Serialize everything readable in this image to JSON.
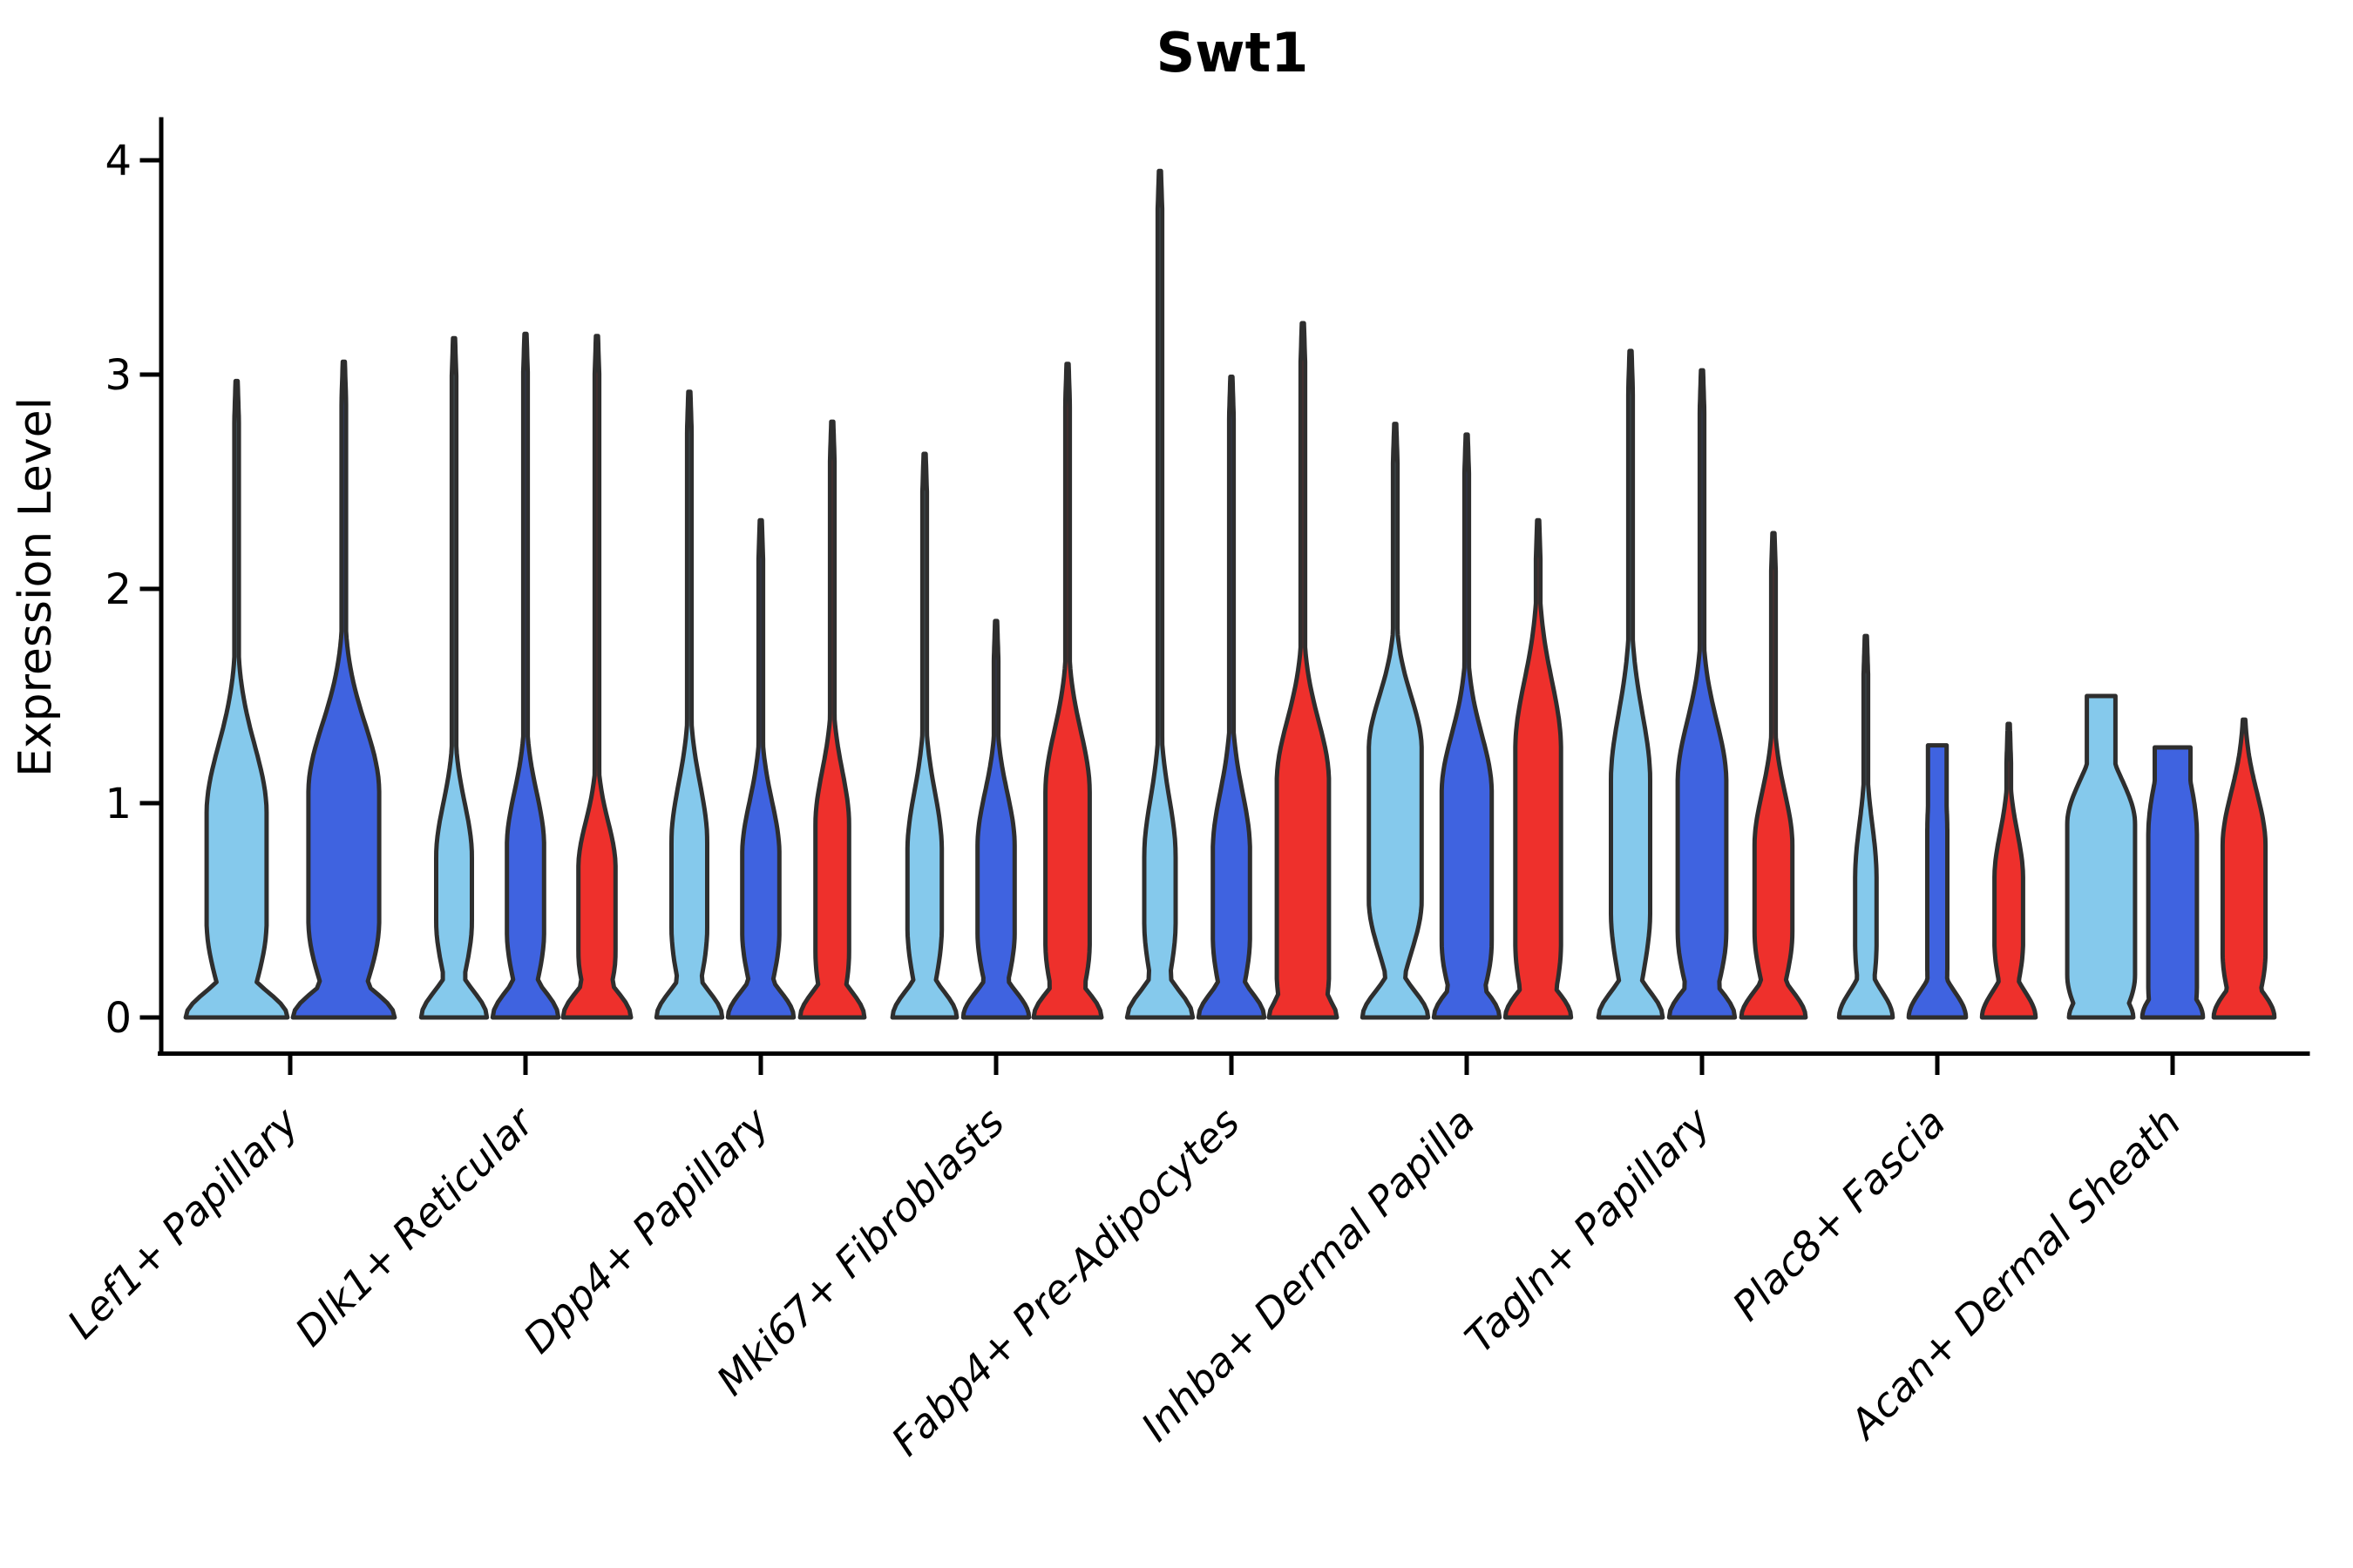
{
  "palette": {
    "series_fills": [
      "#85C9EC",
      "#3F63E0",
      "#EE302C"
    ],
    "series_names": [
      "light-blue-violin",
      "dark-blue-violin",
      "red-violin"
    ],
    "violin_stroke": "#2E2E2E",
    "axis_color": "#000000",
    "background": "#ffffff"
  },
  "chart_data": {
    "type": "violin",
    "title": "Swt1",
    "xlabel": "",
    "ylabel": "Expression Level",
    "y_ticks": [
      0,
      1,
      2,
      3,
      4
    ],
    "ylim": [
      -0.16,
      4.18
    ],
    "grid": "off",
    "legend": "none",
    "categories": [
      "Lef1+ Papillary",
      "Dlk1+ Reticular",
      "Dpp4+ Papillary",
      "Mki67+ Fibroblasts",
      "Fabp4+ Pre-Adipocytes",
      "Inhba+ Dermal Papilla",
      "Tagln+ Papillary",
      "Plac8+ Fascia",
      "Acan+ Dermal Sheath"
    ],
    "violins": [
      [
        {
          "series": 0,
          "max": 2.97,
          "peak_center": 0.7,
          "peak_flat": 0.25,
          "peak_sigma": 0.45,
          "peak_halfwidth": 0.56,
          "base_halfwidth": 0.95,
          "column_halfwidth": 0
        },
        {
          "series": 1,
          "max": 3.06,
          "peak_center": 0.75,
          "peak_flat": 0.3,
          "peak_sigma": 0.45,
          "peak_halfwidth": 0.66,
          "base_halfwidth": 0.95,
          "column_halfwidth": 0
        }
      ],
      [
        {
          "series": 0,
          "max": 3.17,
          "peak_center": 0.6,
          "peak_flat": 0.15,
          "peak_sigma": 0.35,
          "peak_halfwidth": 0.5,
          "base_halfwidth": 0.92,
          "column_halfwidth": 0
        },
        {
          "series": 1,
          "max": 3.19,
          "peak_center": 0.6,
          "peak_flat": 0.2,
          "peak_sigma": 0.35,
          "peak_halfwidth": 0.52,
          "base_halfwidth": 0.92,
          "column_halfwidth": 0
        },
        {
          "series": 2,
          "max": 3.18,
          "peak_center": 0.5,
          "peak_flat": 0.2,
          "peak_sigma": 0.3,
          "peak_halfwidth": 0.52,
          "base_halfwidth": 0.95,
          "column_halfwidth": 0
        }
      ],
      [
        {
          "series": 0,
          "max": 2.92,
          "peak_center": 0.62,
          "peak_flat": 0.2,
          "peak_sigma": 0.38,
          "peak_halfwidth": 0.5,
          "base_halfwidth": 0.92,
          "column_halfwidth": 0
        },
        {
          "series": 1,
          "max": 2.32,
          "peak_center": 0.58,
          "peak_flat": 0.18,
          "peak_sigma": 0.35,
          "peak_halfwidth": 0.52,
          "base_halfwidth": 0.92,
          "column_halfwidth": 0
        },
        {
          "series": 2,
          "max": 2.78,
          "peak_center": 0.6,
          "peak_flat": 0.3,
          "peak_sigma": 0.35,
          "peak_halfwidth": 0.47,
          "base_halfwidth": 0.9,
          "column_halfwidth": 0
        }
      ],
      [
        {
          "series": 0,
          "max": 2.63,
          "peak_center": 0.6,
          "peak_flat": 0.18,
          "peak_sigma": 0.38,
          "peak_halfwidth": 0.48,
          "base_halfwidth": 0.9,
          "column_halfwidth": 0
        },
        {
          "series": 1,
          "max": 1.85,
          "peak_center": 0.6,
          "peak_flat": 0.2,
          "peak_sigma": 0.35,
          "peak_halfwidth": 0.52,
          "base_halfwidth": 0.92,
          "column_halfwidth": 0
        },
        {
          "series": 2,
          "max": 3.05,
          "peak_center": 0.7,
          "peak_flat": 0.35,
          "peak_sigma": 0.4,
          "peak_halfwidth": 0.62,
          "base_halfwidth": 0.95,
          "column_halfwidth": 0
        }
      ],
      [
        {
          "series": 0,
          "max": 3.95,
          "peak_center": 0.6,
          "peak_flat": 0.15,
          "peak_sigma": 0.38,
          "peak_halfwidth": 0.44,
          "base_halfwidth": 0.92,
          "column_halfwidth": 0
        },
        {
          "series": 1,
          "max": 2.99,
          "peak_center": 0.58,
          "peak_flat": 0.2,
          "peak_sigma": 0.38,
          "peak_halfwidth": 0.52,
          "base_halfwidth": 0.92,
          "column_halfwidth": 0
        },
        {
          "series": 2,
          "max": 3.24,
          "peak_center": 0.65,
          "peak_flat": 0.45,
          "peak_sigma": 0.4,
          "peak_halfwidth": 0.73,
          "base_halfwidth": 0.95,
          "column_halfwidth": 0
        }
      ],
      [
        {
          "series": 0,
          "max": 2.77,
          "peak_center": 0.9,
          "peak_flat": 0.35,
          "peak_sigma": 0.35,
          "peak_halfwidth": 0.74,
          "base_halfwidth": 0.92,
          "column_halfwidth": 0
        },
        {
          "series": 1,
          "max": 2.72,
          "peak_center": 0.7,
          "peak_flat": 0.35,
          "peak_sigma": 0.38,
          "peak_halfwidth": 0.7,
          "base_halfwidth": 0.92,
          "column_halfwidth": 0
        },
        {
          "series": 2,
          "max": 2.32,
          "peak_center": 0.8,
          "peak_flat": 0.45,
          "peak_sigma": 0.45,
          "peak_halfwidth": 0.64,
          "base_halfwidth": 0.92,
          "column_halfwidth": 0
        }
      ],
      [
        {
          "series": 0,
          "max": 3.11,
          "peak_center": 0.8,
          "peak_flat": 0.3,
          "peak_sigma": 0.45,
          "peak_halfwidth": 0.55,
          "base_halfwidth": 0.9,
          "column_halfwidth": 0
        },
        {
          "series": 1,
          "max": 3.02,
          "peak_center": 0.75,
          "peak_flat": 0.35,
          "peak_sigma": 0.4,
          "peak_halfwidth": 0.68,
          "base_halfwidth": 0.92,
          "column_halfwidth": 0
        },
        {
          "series": 2,
          "max": 2.26,
          "peak_center": 0.6,
          "peak_flat": 0.2,
          "peak_sigma": 0.35,
          "peak_halfwidth": 0.53,
          "base_halfwidth": 0.9,
          "column_halfwidth": 0
        }
      ],
      [
        {
          "series": 0,
          "max": 1.78,
          "peak_center": 0.5,
          "peak_flat": 0.15,
          "peak_sigma": 0.35,
          "peak_halfwidth": 0.3,
          "base_halfwidth": 0.75,
          "column_halfwidth": 0
        },
        {
          "series": 1,
          "max": 1.27,
          "peak_center": 0.55,
          "peak_flat": 0.3,
          "peak_sigma": 0.5,
          "peak_halfwidth": 0.28,
          "base_halfwidth": 0.8,
          "column_halfwidth": 0.26
        },
        {
          "series": 2,
          "max": 1.37,
          "peak_center": 0.5,
          "peak_flat": 0.15,
          "peak_sigma": 0.3,
          "peak_halfwidth": 0.4,
          "base_halfwidth": 0.75,
          "column_halfwidth": 0
        }
      ],
      [
        {
          "series": 0,
          "max": 1.5,
          "peak_center": 0.55,
          "peak_flat": 0.35,
          "peak_sigma": 0.3,
          "peak_halfwidth": 0.95,
          "base_halfwidth": 0.9,
          "column_halfwidth": 0.4
        },
        {
          "series": 1,
          "max": 1.26,
          "peak_center": 0.5,
          "peak_flat": 0.35,
          "peak_sigma": 0.45,
          "peak_halfwidth": 0.68,
          "base_halfwidth": 0.85,
          "column_halfwidth": 0.5
        },
        {
          "series": 2,
          "max": 1.39,
          "peak_center": 0.55,
          "peak_flat": 0.25,
          "peak_sigma": 0.35,
          "peak_halfwidth": 0.6,
          "base_halfwidth": 0.85,
          "column_halfwidth": 0
        }
      ]
    ]
  }
}
